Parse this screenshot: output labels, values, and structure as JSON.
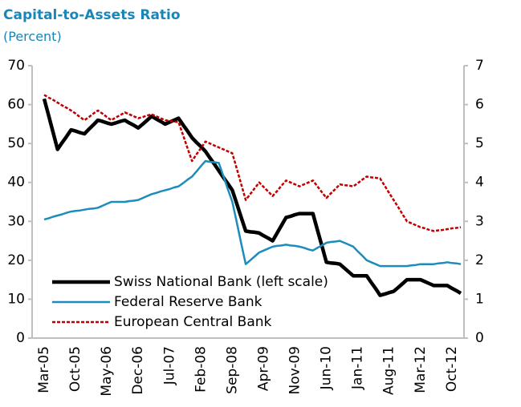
{
  "chart_data": {
    "type": "line",
    "title": "Capital-to-Assets Ratio",
    "subtitle": "(Percent)",
    "categories": [
      "Mar-05",
      null,
      null,
      null,
      null,
      null,
      null,
      "Oct-05",
      null,
      null,
      null,
      null,
      null,
      null,
      "May-06",
      null,
      null,
      null,
      null,
      null,
      null,
      "Dec-06",
      null,
      null,
      null,
      null,
      null,
      null,
      "Jul-07",
      null,
      null,
      null,
      null,
      null,
      null,
      "Feb-08",
      null,
      null,
      null,
      null,
      null,
      null,
      "Sep-08",
      null,
      null,
      null,
      null,
      null,
      null,
      "Apr-09",
      null,
      null,
      null,
      null,
      null,
      null,
      "Nov-09",
      null,
      null,
      null,
      null,
      null,
      null,
      "Jun-10",
      null,
      null,
      null,
      null,
      null,
      null,
      "Jan-11",
      null,
      null,
      null,
      null,
      null,
      null,
      "Aug-11",
      null,
      null,
      null,
      null,
      null,
      null,
      "Mar-12",
      null,
      null,
      null,
      null,
      null,
      null,
      "Oct-12",
      null,
      null
    ],
    "series": [
      {
        "name": "Swiss National Bank (left scale)",
        "color": "#000000",
        "axis": "y",
        "dash": false,
        "width": 4.5,
        "values": [
          61.5,
          57.2,
          52.8,
          48.5,
          50.2,
          51.8,
          53.5,
          53.2,
          52.8,
          52.5,
          53.7,
          54.8,
          56,
          55.7,
          55.3,
          55,
          55.3,
          55.7,
          56,
          55.3,
          54.7,
          54,
          55,
          56,
          57,
          56.3,
          55.7,
          55,
          55.5,
          56,
          56.5,
          54.8,
          53.2,
          51.5,
          50.3,
          49.2,
          48,
          46.3,
          44.7,
          43,
          41.3,
          39.7,
          38,
          34.5,
          31,
          27.5,
          27.3,
          27.2,
          27,
          26.3,
          25.7,
          25,
          27,
          29,
          31,
          31.3,
          31.7,
          32,
          32,
          32,
          32,
          27.8,
          23.7,
          19.5,
          19.3,
          19.2,
          19,
          18,
          17,
          16,
          16,
          16,
          16,
          14.3,
          12.7,
          11,
          11.3,
          11.7,
          12,
          13,
          14,
          15,
          15,
          15,
          15,
          14.5,
          14,
          13.5,
          13.5,
          13.5,
          13.5,
          12.8,
          12.2,
          11.5
        ]
      },
      {
        "name": "Federal Reserve Bank",
        "color": "#1b8dbd",
        "axis": "y2",
        "dash": false,
        "width": 2.5,
        "values": [
          3.05,
          3.08,
          3.12,
          3.15,
          3.18,
          3.22,
          3.25,
          3.27,
          3.28,
          3.3,
          3.32,
          3.33,
          3.35,
          3.4,
          3.45,
          3.5,
          3.5,
          3.5,
          3.5,
          3.52,
          3.53,
          3.55,
          3.6,
          3.65,
          3.7,
          3.73,
          3.77,
          3.8,
          3.83,
          3.87,
          3.9,
          3.98,
          4.07,
          4.15,
          4.28,
          4.42,
          4.55,
          4.53,
          4.52,
          4.5,
          4.17,
          3.83,
          3.5,
          2.97,
          2.43,
          1.9,
          2,
          2.1,
          2.2,
          2.25,
          2.3,
          2.35,
          2.37,
          2.38,
          2.4,
          2.38,
          2.37,
          2.35,
          2.32,
          2.28,
          2.25,
          2.32,
          2.38,
          2.45,
          2.47,
          2.48,
          2.5,
          2.45,
          2.4,
          2.35,
          2.23,
          2.12,
          2,
          1.95,
          1.9,
          1.85,
          1.85,
          1.85,
          1.85,
          1.85,
          1.85,
          1.85,
          1.87,
          1.88,
          1.9,
          1.9,
          1.9,
          1.9,
          1.92,
          1.93,
          1.95,
          1.93,
          1.92,
          1.9
        ]
      },
      {
        "name": "European Central Bank",
        "color": "#c00000",
        "axis": "y2",
        "dash": true,
        "width": 2.5,
        "values": [
          6.25,
          6.18,
          6.12,
          6.05,
          5.98,
          5.92,
          5.85,
          5.77,
          5.68,
          5.6,
          5.68,
          5.77,
          5.85,
          5.77,
          5.68,
          5.6,
          5.67,
          5.73,
          5.8,
          5.75,
          5.7,
          5.65,
          5.68,
          5.72,
          5.75,
          5.7,
          5.65,
          5.6,
          5.58,
          5.57,
          5.55,
          5.22,
          4.88,
          4.55,
          4.72,
          4.88,
          5.05,
          5,
          4.95,
          4.9,
          4.85,
          4.8,
          4.75,
          4.35,
          3.95,
          3.55,
          3.7,
          3.85,
          4,
          3.88,
          3.77,
          3.65,
          3.78,
          3.92,
          4.05,
          4,
          3.95,
          3.9,
          3.95,
          4,
          4.05,
          3.9,
          3.75,
          3.6,
          3.72,
          3.83,
          3.95,
          3.93,
          3.92,
          3.9,
          3.98,
          4.07,
          4.15,
          4.13,
          4.12,
          4.1,
          3.92,
          3.73,
          3.55,
          3.37,
          3.18,
          3,
          2.95,
          2.9,
          2.85,
          2.82,
          2.78,
          2.75,
          2.77,
          2.78,
          2.8,
          2.82,
          2.83,
          2.85
        ]
      }
    ],
    "ylim": [
      0,
      70
    ],
    "yticks": [
      0,
      10,
      20,
      30,
      40,
      50,
      60,
      70
    ],
    "y2lim": [
      0,
      7
    ],
    "y2ticks": [
      0,
      1,
      2,
      3,
      4,
      5,
      6,
      7
    ],
    "grid": false,
    "legend": "lower-left"
  }
}
